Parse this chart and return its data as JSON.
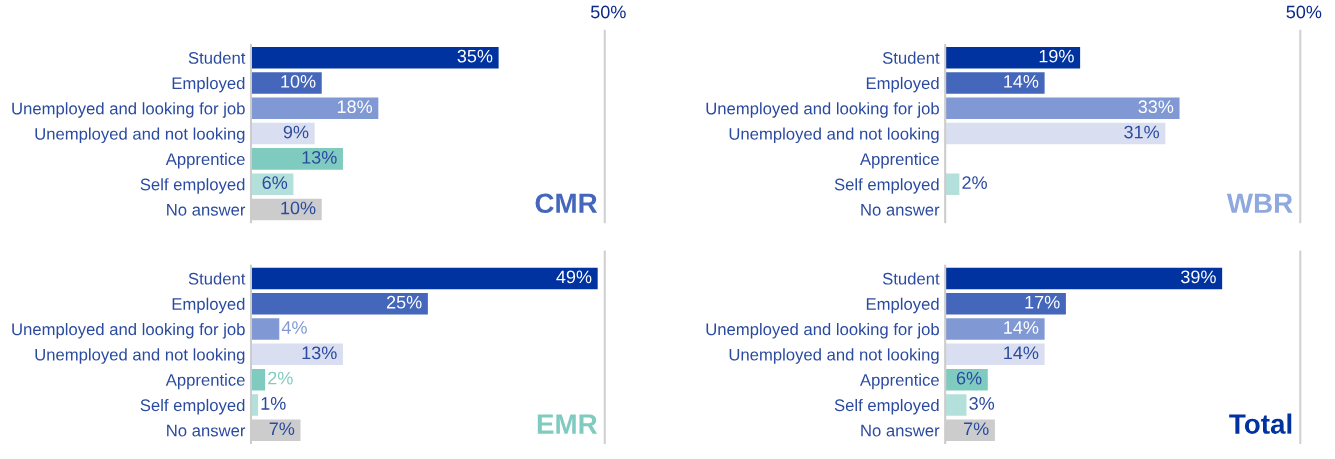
{
  "chart_data": [
    {
      "type": "bar",
      "orientation": "horizontal",
      "categories": [
        "Student",
        "Employed",
        "Unemployed and looking for job",
        "Unemployed and not looking",
        "Apprentice",
        "Self employed",
        "No answer"
      ],
      "values": [
        35,
        10,
        18,
        9,
        13,
        6,
        10
      ],
      "colors": [
        "#0033a0",
        "#4466bb",
        "#8099d4",
        "#d9dff0",
        "#80cbc0",
        "#b3e0da",
        "#cccccc"
      ],
      "ref_lines": [
        {
          "axis": "x",
          "value": 50,
          "label": "50%",
          "color": "#d0d0d0"
        }
      ],
      "value_labels": [
        "35%",
        "10%",
        "18%",
        "9%",
        "13%",
        "6%",
        "10%"
      ],
      "annotations": [
        "CMR"
      ]
    },
    {
      "type": "bar",
      "orientation": "horizontal",
      "categories": [
        "Student",
        "Employed",
        "Unemployed and looking for job",
        "Unemployed and not looking",
        "Apprentice",
        "Self employed",
        "No answer"
      ],
      "values": [
        19,
        14,
        33,
        31,
        null,
        2,
        null
      ],
      "colors": [
        "#0033a0",
        "#4466bb",
        "#8099d4",
        "#d9dff0",
        "#80cbc0",
        "#b3e0da",
        "#cccccc"
      ],
      "ref_lines": [
        {
          "axis": "x",
          "value": 50,
          "label": "50%",
          "color": "#d0d0d0"
        }
      ],
      "value_labels": [
        "19%",
        "14%",
        "33%",
        "31%",
        null,
        "2%",
        null
      ],
      "annotations": [
        "WBR"
      ]
    },
    {
      "type": "bar",
      "orientation": "horizontal",
      "categories": [
        "Student",
        "Employed",
        "Unemployed and looking for job",
        "Unemployed and not looking",
        "Apprentice",
        "Self employed",
        "No answer"
      ],
      "values": [
        49,
        25,
        4,
        13,
        2,
        1,
        7
      ],
      "colors": [
        "#0033a0",
        "#4466bb",
        "#8099d4",
        "#d9dff0",
        "#80cbc0",
        "#b3e0da",
        "#cccccc"
      ],
      "ref_lines": [
        {
          "axis": "x",
          "value": 50,
          "label": null,
          "color": "#d0d0d0"
        }
      ],
      "value_labels": [
        "49%",
        "25%",
        "4%",
        "13%",
        "2%",
        "1%",
        "7%"
      ],
      "annotations": [
        "EMR"
      ]
    },
    {
      "type": "bar",
      "orientation": "horizontal",
      "categories": [
        "Student",
        "Employed",
        "Unemployed and looking for job",
        "Unemployed and not looking",
        "Apprentice",
        "Self employed",
        "No answer"
      ],
      "values": [
        39,
        17,
        14,
        14,
        6,
        3,
        7
      ],
      "colors": [
        "#0033a0",
        "#4466bb",
        "#8099d4",
        "#d9dff0",
        "#80cbc0",
        "#b3e0da",
        "#cccccc"
      ],
      "ref_lines": [
        {
          "axis": "x",
          "value": 50,
          "label": null,
          "color": "#d0d0d0"
        }
      ],
      "value_labels": [
        "39%",
        "17%",
        "14%",
        "14%",
        "6%",
        "3%",
        "7%"
      ],
      "annotations": [
        "Total"
      ]
    }
  ]
}
